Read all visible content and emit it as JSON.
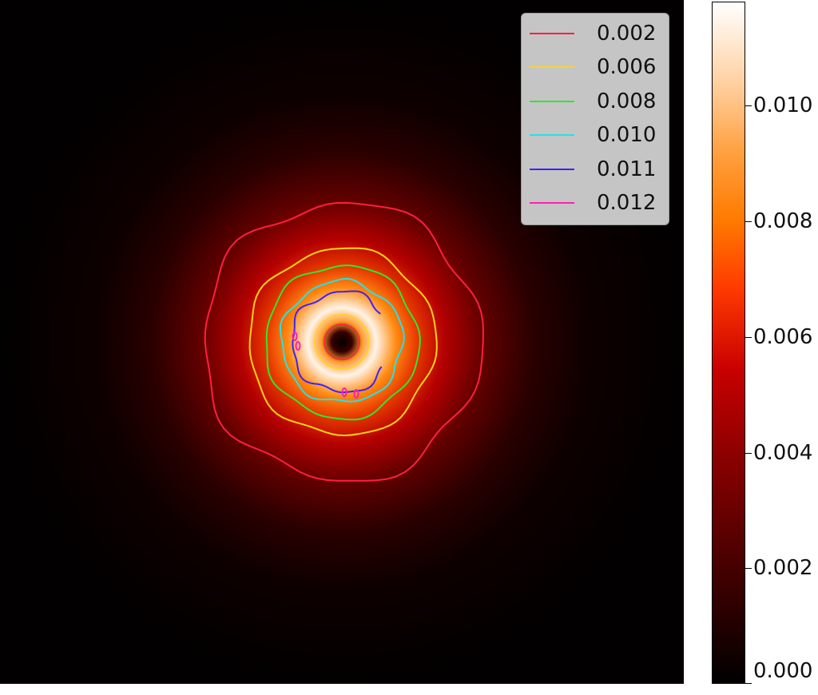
{
  "chart_data": {
    "type": "heatmap",
    "colormap": "gist_heat",
    "value_range": [
      0.0,
      0.0118
    ],
    "profile": {
      "description": "radially symmetric ring with dark center",
      "peak_value": 0.0118
    },
    "contours": [
      {
        "level": "0.002",
        "color": "#ff1f3d"
      },
      {
        "level": "0.006",
        "color": "#ffd21a"
      },
      {
        "level": "0.008",
        "color": "#2ee82e"
      },
      {
        "level": "0.010",
        "color": "#21e3e8"
      },
      {
        "level": "0.011",
        "color": "#3b22ff"
      },
      {
        "level": "0.012",
        "color": "#ff1fb3"
      }
    ],
    "legend": {
      "placement": "top-right",
      "entries": [
        "0.002",
        "0.006",
        "0.008",
        "0.010",
        "0.011",
        "0.012"
      ]
    },
    "colorbar": {
      "ticks": [
        0.0,
        0.002,
        0.004,
        0.006,
        0.008,
        0.01
      ],
      "tick_labels": [
        "0.000",
        "0.002",
        "0.004",
        "0.006",
        "0.008",
        "0.010"
      ]
    },
    "xlabel": "",
    "ylabel": "",
    "title": ""
  }
}
